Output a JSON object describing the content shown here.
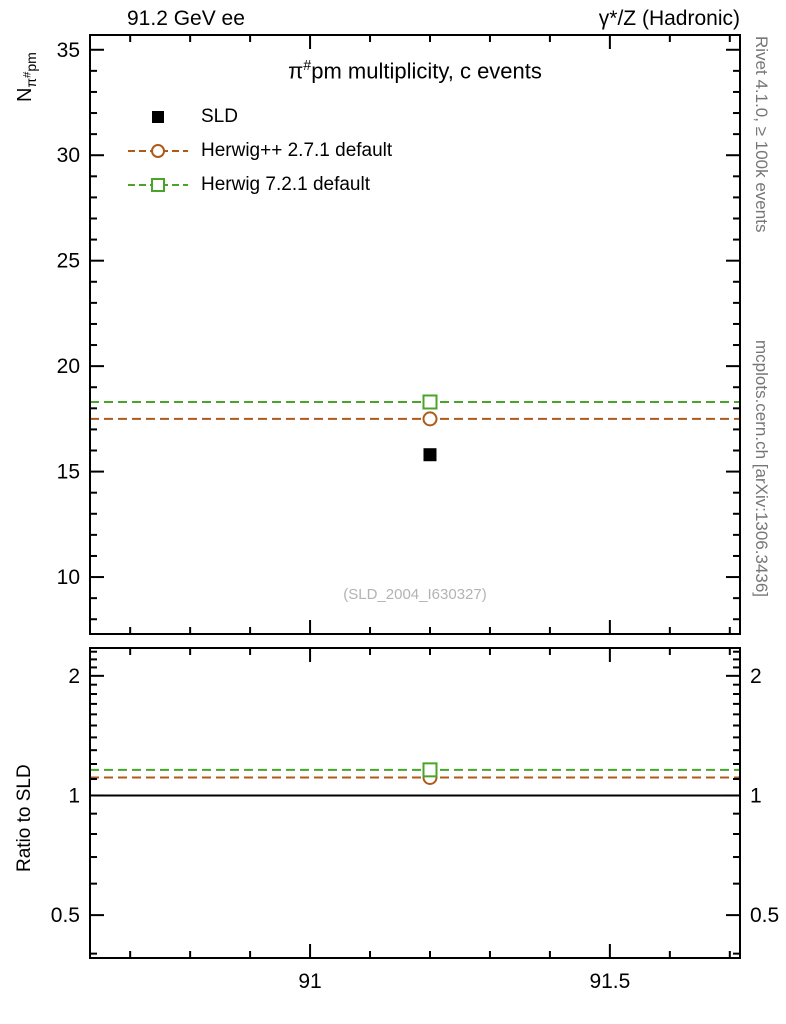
{
  "header": {
    "left": "91.2 GeV ee",
    "right": "γ*/Z (Hadronic)"
  },
  "labels": {
    "title_pre": "π",
    "title_sup": "#",
    "title_post": "pm multiplicity, c events",
    "ylabel_base": "N",
    "ylabel_sub_pre": "π",
    "ylabel_sub_sup": "#",
    "ylabel_sub_post": "pm",
    "ratio_ylabel": "Ratio to SLD",
    "watermark": "(SLD_2004_I630327)",
    "right_top": "Rivet 4.1.0, ≥ 100k events",
    "right_bottom": "mcplots.cern.ch [arXiv:1306.3436]"
  },
  "legend": {
    "items": [
      {
        "label": "SLD",
        "marker": "filled-square",
        "color": "#000000",
        "line": false
      },
      {
        "label": "Herwig++ 2.7.1 default",
        "marker": "open-circle",
        "color": "#b05a1a",
        "line": true
      },
      {
        "label": "Herwig 7.2.1 default",
        "marker": "open-square",
        "color": "#4aa42a",
        "line": true
      }
    ]
  },
  "chart_data": {
    "type": "line",
    "title": "π#pm multiplicity, c events",
    "xlabel": "",
    "xlim": [
      90.633,
      91.717
    ],
    "x_ticks_major": [
      91,
      91.5
    ],
    "x_tick_labels": [
      "91",
      "91.5"
    ],
    "x_minor_step": 0.1,
    "panels": [
      {
        "name": "main",
        "ylabel": "N_π#pm",
        "yscale": "linear",
        "ylim": [
          7.3,
          35.7
        ],
        "yticks": [
          10,
          15,
          20,
          25,
          30,
          35
        ],
        "y_minor_step": 1,
        "series": [
          {
            "name": "SLD",
            "type": "data-point",
            "marker": "filled-square",
            "color": "#000000",
            "points": [
              {
                "x": 91.2,
                "y": 15.8
              }
            ]
          },
          {
            "name": "Herwig++ 2.7.1 default",
            "type": "hline-marker",
            "marker": "open-circle",
            "color": "#b05a1a",
            "line_style": "dashed",
            "y": 17.5,
            "marker_x": 91.2
          },
          {
            "name": "Herwig 7.2.1 default",
            "type": "hline-marker",
            "marker": "open-square",
            "color": "#4aa42a",
            "line_style": "dashed",
            "y": 18.3,
            "marker_x": 91.2
          }
        ]
      },
      {
        "name": "ratio",
        "ylabel": "Ratio to SLD",
        "yscale": "log",
        "ylim": [
          0.39,
          2.35
        ],
        "yticks": [
          0.5,
          1,
          2
        ],
        "ytick_labels": [
          "0.5",
          "1",
          "2"
        ],
        "reference_line": {
          "y": 1.0,
          "color": "#000000",
          "style": "solid"
        },
        "series": [
          {
            "name": "Herwig++ 2.7.1 default",
            "type": "hline-marker",
            "marker": "open-circle",
            "color": "#b05a1a",
            "line_style": "dashed",
            "y": 1.11,
            "marker_x": 91.2
          },
          {
            "name": "Herwig 7.2.1 default",
            "type": "hline-marker",
            "marker": "open-square",
            "color": "#4aa42a",
            "line_style": "dashed",
            "y": 1.16,
            "marker_x": 91.2
          }
        ]
      }
    ]
  }
}
